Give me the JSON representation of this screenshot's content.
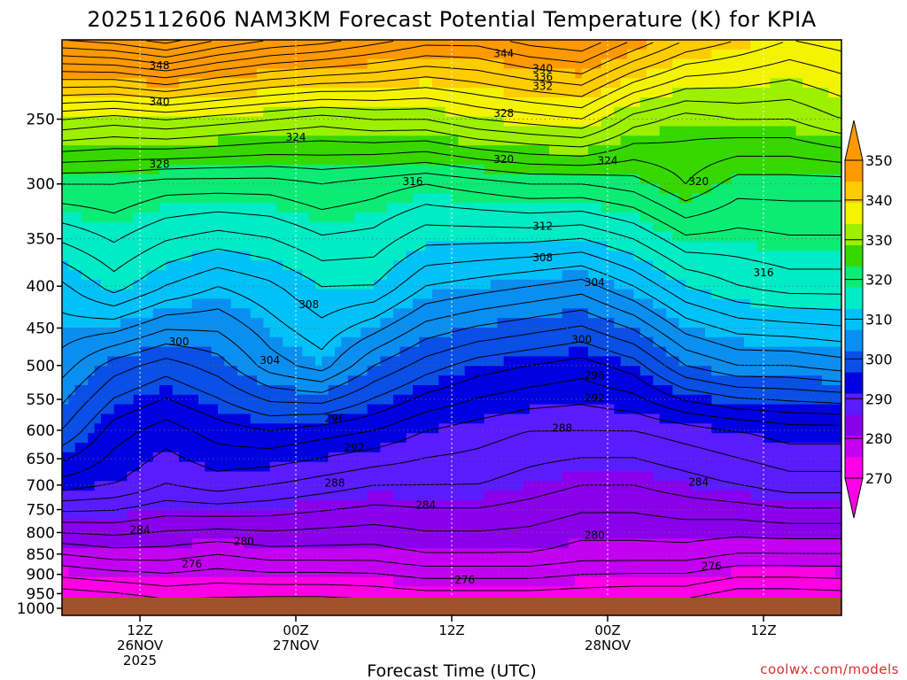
{
  "title": "2025112606 NAM3KM Forecast Potential Temperature (K) for KPIA",
  "credit": "coolwx.com/models",
  "colors": {
    "fills": [
      "#ff00e6",
      "#c400f2",
      "#8a00ea",
      "#5a1cff",
      "#0000e0",
      "#0a4fe6",
      "#0a8ff0",
      "#00c2f8",
      "#00ecc6",
      "#0cec74",
      "#36d800",
      "#9cf000",
      "#f4f400",
      "#ffcc00",
      "#ff9900"
    ],
    "ground": "#a0522d",
    "line": "#000000",
    "grid": "#666666"
  },
  "chart_data": {
    "type": "heatmap",
    "subtype": "time-height filled contour of potential temperature",
    "title": "2025112606 NAM3KM Forecast Potential Temperature (K) for KPIA",
    "xlabel": "Forecast Time (UTC)",
    "ylabel": "",
    "y_scale": "log-pressure (hPa), reversed",
    "yticks": [
      250,
      300,
      350,
      400,
      450,
      500,
      550,
      600,
      650,
      700,
      750,
      800,
      850,
      900,
      950,
      1000
    ],
    "ylim": [
      200,
      1010
    ],
    "x_forecast_hours": [
      0,
      60
    ],
    "xticks": [
      {
        "hour": 6,
        "lines": [
          "12Z",
          "26NOV",
          "2025"
        ]
      },
      {
        "hour": 18,
        "lines": [
          "00Z",
          "27NOV"
        ]
      },
      {
        "hour": 30,
        "lines": [
          "12Z"
        ]
      },
      {
        "hour": 42,
        "lines": [
          "00Z",
          "28NOV"
        ]
      },
      {
        "hour": 54,
        "lines": [
          "12Z"
        ]
      }
    ],
    "contour_interval_K": 2,
    "fill_interval_K": 5,
    "colorbar": {
      "ticks": [
        270,
        280,
        290,
        300,
        310,
        320,
        330,
        340,
        350
      ],
      "levels": [
        270,
        275,
        280,
        285,
        290,
        295,
        300,
        305,
        310,
        315,
        320,
        325,
        330,
        335,
        340,
        345,
        350
      ],
      "extend": "both"
    },
    "grid": true,
    "profiles": [
      {
        "hour": 0,
        "theta": [
          [
            1000,
            268.0
          ],
          [
            850,
            278
          ],
          [
            700,
            291
          ],
          [
            600,
            298
          ],
          [
            500,
            303
          ],
          [
            400,
            307.5
          ],
          [
            300,
            318
          ],
          [
            250,
            330
          ],
          [
            200,
            350
          ]
        ]
      },
      {
        "hour": 4,
        "theta": [
          [
            1000,
            268.5
          ],
          [
            850,
            279
          ],
          [
            700,
            290
          ],
          [
            600,
            293
          ],
          [
            500,
            299
          ],
          [
            400,
            311
          ],
          [
            300,
            318
          ],
          [
            250,
            329
          ],
          [
            200,
            351
          ]
        ]
      },
      {
        "hour": 8,
        "theta": [
          [
            1000,
            270.0
          ],
          [
            850,
            279
          ],
          [
            700,
            288
          ],
          [
            600,
            291
          ],
          [
            500,
            297
          ],
          [
            400,
            308
          ],
          [
            300,
            317
          ],
          [
            250,
            330
          ],
          [
            200,
            353
          ]
        ]
      },
      {
        "hour": 12,
        "theta": [
          [
            1000,
            270.0
          ],
          [
            850,
            278
          ],
          [
            700,
            289
          ],
          [
            600,
            293
          ],
          [
            500,
            299
          ],
          [
            400,
            306
          ],
          [
            300,
            317
          ],
          [
            250,
            329
          ],
          [
            200,
            350
          ]
        ]
      },
      {
        "hour": 16,
        "theta": [
          [
            1000,
            269.5
          ],
          [
            850,
            279
          ],
          [
            700,
            288
          ],
          [
            600,
            294
          ],
          [
            500,
            303
          ],
          [
            400,
            307.5
          ],
          [
            300,
            317
          ],
          [
            250,
            328
          ],
          [
            200,
            348
          ]
        ]
      },
      {
        "hour": 20,
        "theta": [
          [
            1000,
            269.5
          ],
          [
            850,
            279
          ],
          [
            700,
            287
          ],
          [
            600,
            293
          ],
          [
            500,
            305
          ],
          [
            400,
            310
          ],
          [
            300,
            318
          ],
          [
            250,
            327
          ],
          [
            200,
            347
          ]
        ]
      },
      {
        "hour": 24,
        "theta": [
          [
            1000,
            270.0
          ],
          [
            850,
            279
          ],
          [
            700,
            286
          ],
          [
            600,
            292
          ],
          [
            500,
            300
          ],
          [
            400,
            310
          ],
          [
            300,
            317
          ],
          [
            250,
            328
          ],
          [
            200,
            345
          ]
        ]
      },
      {
        "hour": 28,
        "theta": [
          [
            1000,
            270.5
          ],
          [
            850,
            280
          ],
          [
            700,
            286
          ],
          [
            600,
            290
          ],
          [
            500,
            297
          ],
          [
            400,
            306
          ],
          [
            300,
            316
          ],
          [
            250,
            328
          ],
          [
            200,
            343
          ]
        ]
      },
      {
        "hour": 32,
        "theta": [
          [
            1000,
            270.5
          ],
          [
            850,
            280
          ],
          [
            700,
            286
          ],
          [
            600,
            289
          ],
          [
            500,
            295
          ],
          [
            400,
            305
          ],
          [
            300,
            317
          ],
          [
            250,
            330
          ],
          [
            200,
            343
          ]
        ]
      },
      {
        "hour": 36,
        "theta": [
          [
            1000,
            270.5
          ],
          [
            850,
            280
          ],
          [
            700,
            285
          ],
          [
            600,
            288
          ],
          [
            500,
            294
          ],
          [
            400,
            304
          ],
          [
            300,
            318
          ],
          [
            250,
            331
          ],
          [
            200,
            345
          ]
        ]
      },
      {
        "hour": 40,
        "theta": [
          [
            1000,
            270.5
          ],
          [
            850,
            279
          ],
          [
            700,
            284
          ],
          [
            600,
            288
          ],
          [
            500,
            293
          ],
          [
            400,
            303
          ],
          [
            300,
            318
          ],
          [
            250,
            332
          ],
          [
            200,
            346
          ]
        ]
      },
      {
        "hour": 44,
        "theta": [
          [
            1000,
            270.0
          ],
          [
            850,
            279
          ],
          [
            700,
            284
          ],
          [
            600,
            288
          ],
          [
            500,
            295
          ],
          [
            400,
            306
          ],
          [
            300,
            319
          ],
          [
            250,
            327
          ],
          [
            200,
            342
          ]
        ]
      },
      {
        "hour": 48,
        "theta": [
          [
            1000,
            270.0
          ],
          [
            850,
            279
          ],
          [
            700,
            285
          ],
          [
            600,
            289
          ],
          [
            500,
            300
          ],
          [
            400,
            310
          ],
          [
            300,
            322
          ],
          [
            250,
            325
          ],
          [
            200,
            338
          ]
        ]
      },
      {
        "hour": 52,
        "theta": [
          [
            1000,
            268.0
          ],
          [
            850,
            278
          ],
          [
            700,
            286
          ],
          [
            600,
            290
          ],
          [
            500,
            302
          ],
          [
            400,
            312
          ],
          [
            300,
            319
          ],
          [
            250,
            326
          ],
          [
            200,
            336
          ]
        ]
      },
      {
        "hour": 56,
        "theta": [
          [
            1000,
            268.0
          ],
          [
            850,
            278
          ],
          [
            700,
            287
          ],
          [
            600,
            291
          ],
          [
            500,
            302
          ],
          [
            400,
            313
          ],
          [
            300,
            319
          ],
          [
            250,
            326
          ],
          [
            200,
            334
          ]
        ]
      },
      {
        "hour": 60,
        "theta": [
          [
            1000,
            268.5
          ],
          [
            850,
            278
          ],
          [
            700,
            287
          ],
          [
            600,
            291
          ],
          [
            500,
            303
          ],
          [
            400,
            313
          ],
          [
            300,
            319
          ],
          [
            250,
            328
          ],
          [
            200,
            335
          ]
        ]
      }
    ],
    "contour_labels": [
      {
        "text": "348",
        "hour": 7.5,
        "p": 215
      },
      {
        "text": "340",
        "hour": 7.5,
        "p": 238
      },
      {
        "text": "328",
        "hour": 7.5,
        "p": 284
      },
      {
        "text": "324",
        "hour": 18,
        "p": 263
      },
      {
        "text": "344",
        "hour": 34,
        "p": 208
      },
      {
        "text": "340",
        "hour": 37,
        "p": 217
      },
      {
        "text": "336",
        "hour": 37,
        "p": 222
      },
      {
        "text": "332",
        "hour": 37,
        "p": 228
      },
      {
        "text": "328",
        "hour": 34,
        "p": 246
      },
      {
        "text": "320",
        "hour": 34,
        "p": 280
      },
      {
        "text": "324",
        "hour": 42,
        "p": 281
      },
      {
        "text": "316",
        "hour": 27,
        "p": 298
      },
      {
        "text": "320",
        "hour": 49,
        "p": 298
      },
      {
        "text": "312",
        "hour": 37,
        "p": 338
      },
      {
        "text": "308",
        "hour": 37,
        "p": 369
      },
      {
        "text": "316",
        "hour": 54,
        "p": 385
      },
      {
        "text": "304",
        "hour": 41,
        "p": 396
      },
      {
        "text": "308",
        "hour": 19,
        "p": 421
      },
      {
        "text": "300",
        "hour": 9,
        "p": 468
      },
      {
        "text": "304",
        "hour": 16,
        "p": 493
      },
      {
        "text": "300",
        "hour": 40,
        "p": 465
      },
      {
        "text": "296",
        "hour": 41,
        "p": 514
      },
      {
        "text": "292",
        "hour": 41,
        "p": 548
      },
      {
        "text": "296",
        "hour": 21,
        "p": 580
      },
      {
        "text": "292",
        "hour": 22.5,
        "p": 630
      },
      {
        "text": "288",
        "hour": 38.5,
        "p": 596
      },
      {
        "text": "288",
        "hour": 21,
        "p": 696
      },
      {
        "text": "284",
        "hour": 28,
        "p": 741
      },
      {
        "text": "284",
        "hour": 49,
        "p": 694
      },
      {
        "text": "284",
        "hour": 6,
        "p": 794
      },
      {
        "text": "280",
        "hour": 14,
        "p": 820
      },
      {
        "text": "280",
        "hour": 41,
        "p": 806
      },
      {
        "text": "276",
        "hour": 10,
        "p": 874
      },
      {
        "text": "276",
        "hour": 50,
        "p": 880
      },
      {
        "text": "276",
        "hour": 31,
        "p": 914
      }
    ]
  }
}
